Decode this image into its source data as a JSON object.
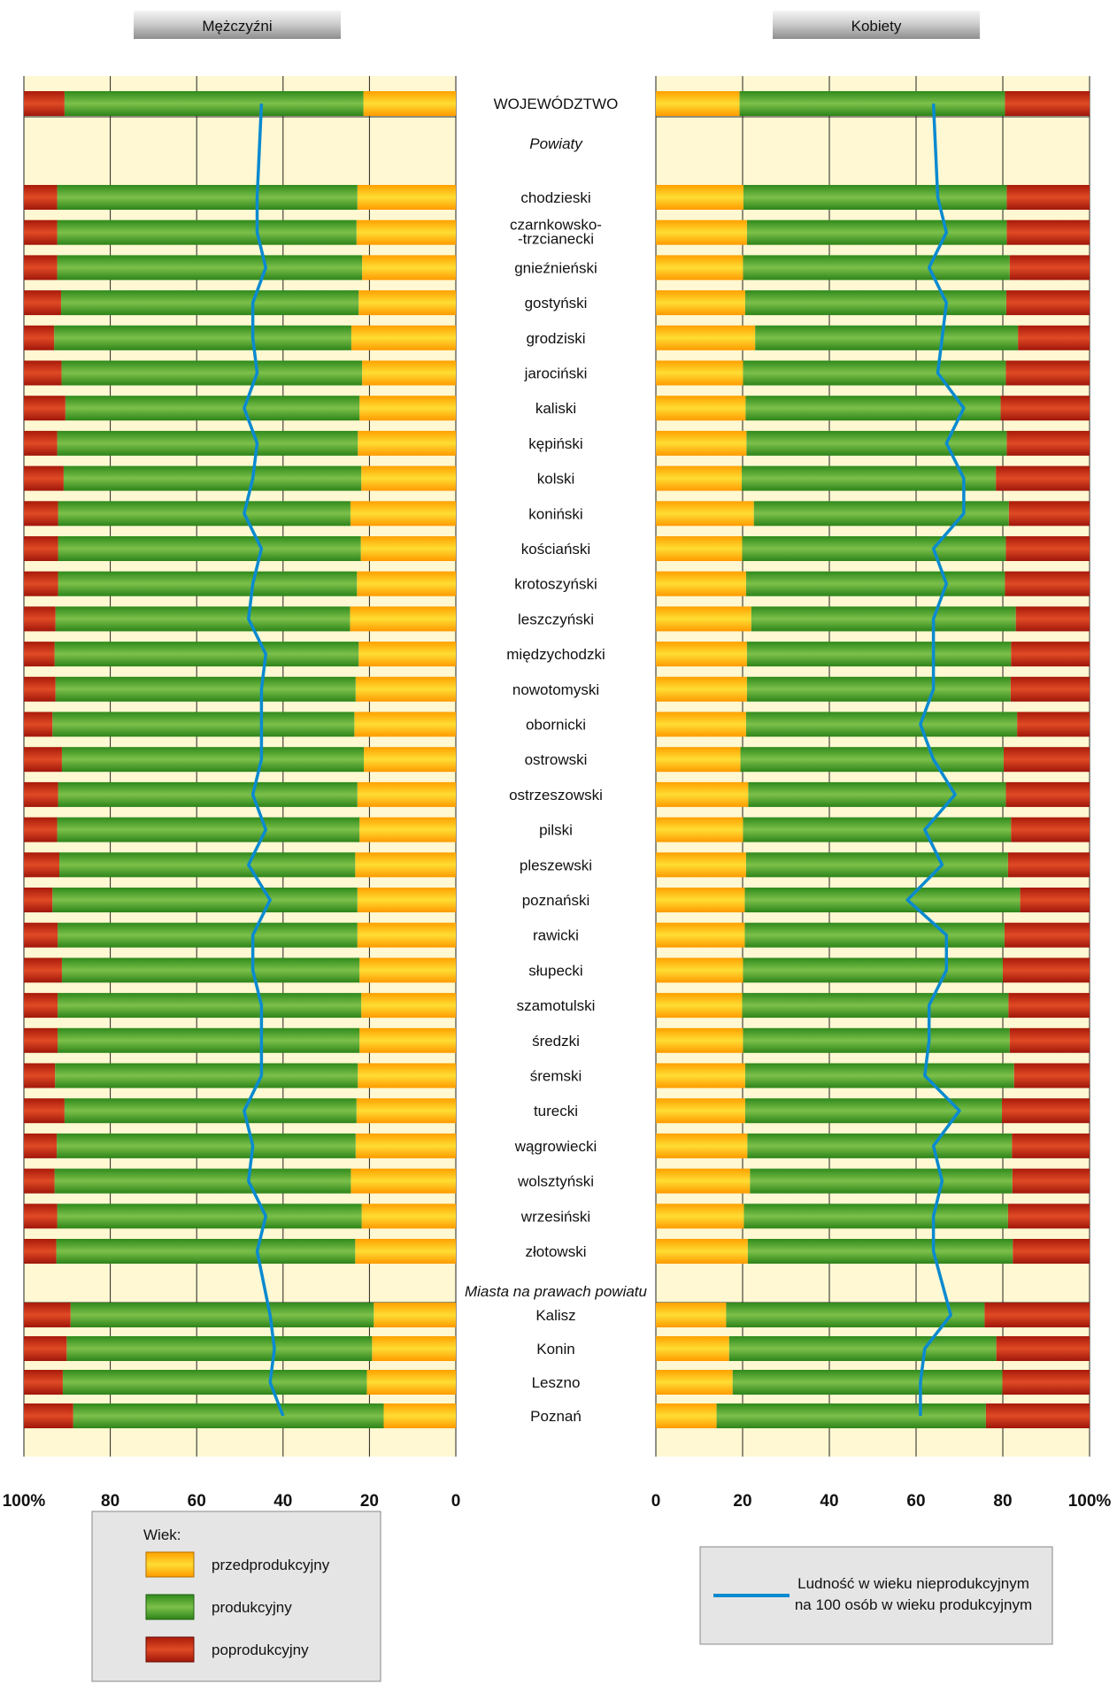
{
  "chart_data": [
    {
      "type": "bar",
      "title": "Mężczyźni",
      "stacked": true,
      "xlim": [
        0,
        100
      ],
      "direction": "right-to-left",
      "ticks": [
        "100%",
        "80",
        "60",
        "40",
        "20",
        "0"
      ],
      "header_label": "WOJEWÓDZTWO",
      "categories": [
        "WOJEWÓDZTWO",
        "chodzieski",
        "czarnkowsko-trzcianecki",
        "gnieźnieński",
        "gostyński",
        "grodziski",
        "jarociński",
        "kaliski",
        "kępiński",
        "kolski",
        "koniński",
        "kościański",
        "krotoszyński",
        "leszczyński",
        "międzychodzki",
        "nowotomyski",
        "obornicki",
        "ostrowski",
        "ostrzeszowski",
        "pilski",
        "pleszewski",
        "poznański",
        "rawicki",
        "słupecki",
        "szamotulski",
        "średzki",
        "śremski",
        "turecki",
        "wągrowiecki",
        "wolsztyński",
        "wrzesiński",
        "złotowski",
        "Kalisz",
        "Konin",
        "Leszno",
        "Poznań"
      ],
      "series": [
        {
          "name": "przedprodukcyjny",
          "values": [
            21.4,
            22.8,
            23.0,
            21.7,
            22.5,
            24.2,
            21.7,
            22.3,
            22.7,
            21.9,
            24.4,
            22.0,
            22.9,
            24.5,
            22.5,
            23.2,
            23.5,
            21.3,
            22.8,
            22.3,
            23.3,
            22.8,
            22.8,
            22.3,
            21.9,
            22.3,
            22.7,
            23.0,
            23.2,
            24.3,
            21.8,
            23.3,
            19.0,
            19.4,
            20.6,
            16.7
          ],
          "color": "#ffb300"
        },
        {
          "name": "produkcyjny",
          "values": [
            69.2,
            69.5,
            69.3,
            70.6,
            68.9,
            68.8,
            69.6,
            68.1,
            69.6,
            68.9,
            67.7,
            70.1,
            69.2,
            68.2,
            70.4,
            69.5,
            69.9,
            69.9,
            69.3,
            70.0,
            68.5,
            70.6,
            69.4,
            68.9,
            70.3,
            69.9,
            70.1,
            67.6,
            69.2,
            68.6,
            70.5,
            69.2,
            70.2,
            70.7,
            70.4,
            71.9
          ],
          "color": "#4a9e2c"
        },
        {
          "name": "poprodukcyjny",
          "values": [
            9.4,
            7.7,
            7.7,
            7.7,
            8.6,
            7.0,
            8.7,
            9.6,
            7.7,
            9.2,
            7.9,
            7.9,
            7.9,
            7.3,
            7.1,
            7.3,
            6.6,
            8.8,
            7.9,
            7.7,
            8.2,
            6.6,
            7.8,
            8.8,
            7.8,
            7.8,
            7.2,
            9.4,
            7.6,
            7.1,
            7.7,
            7.5,
            10.8,
            9.9,
            9.0,
            11.4
          ],
          "color": "#c8230f"
        }
      ],
      "line_series": {
        "name": "Ludność w wieku nieprodukcyjnym na 100 osób w wieku produkcyjnym",
        "values": [
          45,
          46,
          46,
          44,
          47,
          47,
          46,
          49,
          46,
          47,
          49,
          45,
          47,
          48,
          44,
          45,
          45,
          45,
          47,
          44,
          48,
          43,
          47,
          47,
          45,
          45,
          45,
          49,
          47,
          48,
          44,
          46,
          43,
          42,
          43,
          40
        ],
        "color": "#0a8ad0"
      }
    },
    {
      "type": "bar",
      "title": "Kobiety",
      "stacked": true,
      "xlim": [
        0,
        100
      ],
      "direction": "left-to-right",
      "ticks": [
        "0",
        "20",
        "40",
        "60",
        "80",
        "100%"
      ],
      "categories": [
        "WOJEWÓDZTWO",
        "chodzieski",
        "czarnkowsko-trzcianecki",
        "gnieźnieński",
        "gostyński",
        "grodziski",
        "jarociński",
        "kaliski",
        "kępiński",
        "kolski",
        "koniński",
        "kościański",
        "krotoszyński",
        "leszczyński",
        "międzychodzki",
        "nowotomyski",
        "obornicki",
        "ostrowski",
        "ostrzeszowski",
        "pilski",
        "pleszewski",
        "poznański",
        "rawicki",
        "słupecki",
        "szamotulski",
        "średzki",
        "śremski",
        "turecki",
        "wągrowiecki",
        "wolsztyński",
        "wrzesiński",
        "złotowski",
        "Kalisz",
        "Konin",
        "Leszno",
        "Poznań"
      ],
      "series": [
        {
          "name": "przedprodukcyjny",
          "values": [
            19.3,
            20.2,
            21.0,
            20.1,
            20.6,
            22.9,
            20.1,
            20.7,
            20.9,
            19.8,
            22.6,
            19.9,
            20.8,
            22.0,
            21.0,
            21.0,
            20.8,
            19.5,
            21.3,
            20.1,
            20.8,
            20.5,
            20.5,
            20.1,
            19.9,
            20.1,
            20.6,
            20.6,
            21.1,
            21.7,
            20.3,
            21.2,
            16.2,
            16.9,
            17.7,
            14.0
          ],
          "color": "#ffb300"
        },
        {
          "name": "produkcyjny",
          "values": [
            61.2,
            60.7,
            59.9,
            61.5,
            60.2,
            60.6,
            60.6,
            58.8,
            60.0,
            58.6,
            58.8,
            60.8,
            59.7,
            61.0,
            60.9,
            60.8,
            62.5,
            60.7,
            59.4,
            61.8,
            60.4,
            63.5,
            59.9,
            59.9,
            61.4,
            61.5,
            62.0,
            59.2,
            61.0,
            60.5,
            60.9,
            61.1,
            59.6,
            61.6,
            62.2,
            62.1
          ],
          "color": "#4a9e2c"
        },
        {
          "name": "poprodukcyjny",
          "values": [
            19.5,
            19.1,
            19.1,
            18.4,
            19.2,
            16.5,
            19.3,
            20.5,
            19.1,
            21.6,
            18.6,
            19.3,
            19.5,
            17.0,
            18.1,
            18.2,
            16.7,
            19.8,
            19.3,
            18.1,
            18.8,
            16.0,
            19.6,
            20.0,
            18.7,
            18.4,
            17.4,
            20.2,
            17.9,
            17.8,
            18.8,
            17.7,
            24.2,
            21.5,
            20.1,
            23.9
          ],
          "color": "#c8230f"
        }
      ],
      "line_series": {
        "name": "Ludność w wieku nieprodukcyjnym na 100 osób w wieku produkcyjnym",
        "values": [
          64,
          65,
          67,
          63,
          67,
          66,
          65,
          71,
          67,
          71,
          71,
          64,
          67,
          64,
          64,
          64,
          61,
          64,
          69,
          62,
          66,
          58,
          67,
          67,
          63,
          63,
          62,
          70,
          64,
          66,
          64,
          64,
          68,
          62,
          61,
          61
        ],
        "color": "#0a8ad0"
      }
    }
  ],
  "section_labels": {
    "powiaty": "Powiaty",
    "miasta": "Miasta na prawach powiatu"
  },
  "row_labels": [
    "WOJEWÓDZTWO",
    "chodzieski",
    "czarnkowsko-\n-trzcianecki",
    "gnieźnieński",
    "gostyński",
    "grodziski",
    "jarociński",
    "kaliski",
    "kępiński",
    "kolski",
    "koniński",
    "kościański",
    "krotoszyński",
    "leszczyński",
    "międzychodzki",
    "nowotomyski",
    "obornicki",
    "ostrowski",
    "ostrzeszowski",
    "pilski",
    "pleszewski",
    "poznański",
    "rawicki",
    "słupecki",
    "szamotulski",
    "średzki",
    "śremski",
    "turecki",
    "wągrowiecki",
    "wolsztyński",
    "wrzesiński",
    "złotowski",
    "Kalisz",
    "Konin",
    "Leszno",
    "Poznań"
  ],
  "legend": {
    "title": "Wiek:",
    "items": [
      "przedprodukcyjny",
      "produkcyjny",
      "poprodukcyjny"
    ],
    "line_label_1": "Ludność w wieku nieprodukcyjnym",
    "line_label_2": "na 100 osób w wieku produkcyjnym"
  },
  "colors": {
    "panel_bg": "#fff8d2",
    "grid": "#222222",
    "legend_bg": "#e5e5e5"
  }
}
